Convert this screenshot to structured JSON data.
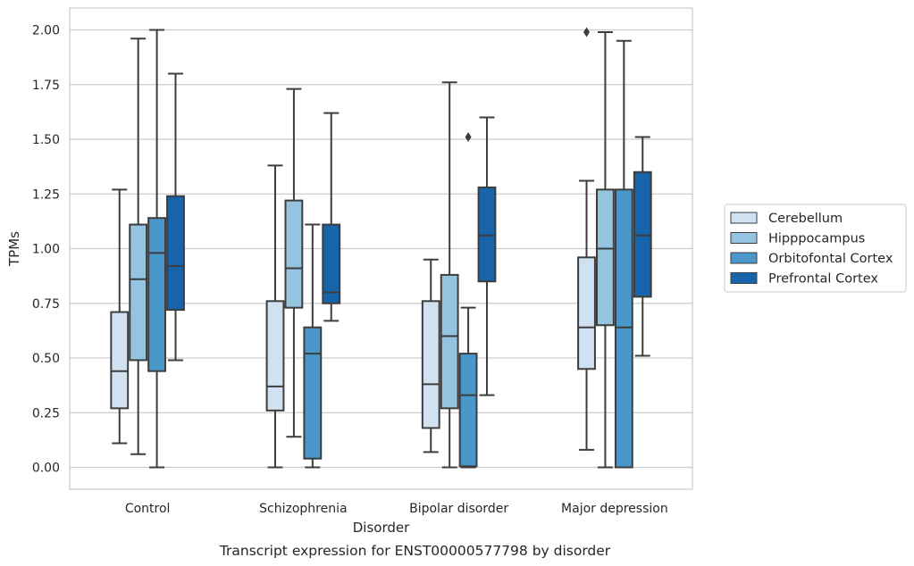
{
  "chart_data": {
    "type": "boxplot",
    "caption": "Transcript expression for ENST00000577798 by disorder",
    "xlabel": "Disorder",
    "ylabel": "TPMs",
    "ylim": [
      -0.1,
      2.1
    ],
    "yticks": [
      "0.00",
      "0.25",
      "0.50",
      "0.75",
      "1.00",
      "1.25",
      "1.50",
      "1.75",
      "2.00"
    ],
    "grid": "horizontal",
    "legend_position": "right",
    "categories": [
      "Control",
      "Schizophrenia",
      "Bipolar disorder",
      "Major depression"
    ],
    "series": [
      {
        "name": "Cerebellum",
        "color": "#d0e1f2",
        "boxes": [
          {
            "whislo": 0.11,
            "q1": 0.27,
            "med": 0.44,
            "q3": 0.71,
            "whishi": 1.27,
            "fliers": []
          },
          {
            "whislo": 0.0,
            "q1": 0.26,
            "med": 0.37,
            "q3": 0.76,
            "whishi": 1.38,
            "fliers": []
          },
          {
            "whislo": 0.07,
            "q1": 0.18,
            "med": 0.38,
            "q3": 0.76,
            "whishi": 0.95,
            "fliers": []
          },
          {
            "whislo": 0.08,
            "q1": 0.45,
            "med": 0.64,
            "q3": 0.96,
            "whishi": 1.31,
            "fliers": [
              1.99
            ]
          }
        ]
      },
      {
        "name": "Hipppocampus",
        "color": "#94c4df",
        "boxes": [
          {
            "whislo": 0.06,
            "q1": 0.49,
            "med": 0.86,
            "q3": 1.11,
            "whishi": 1.96,
            "fliers": []
          },
          {
            "whislo": 0.14,
            "q1": 0.73,
            "med": 0.91,
            "q3": 1.22,
            "whishi": 1.73,
            "fliers": []
          },
          {
            "whislo": 0.0,
            "q1": 0.27,
            "med": 0.6,
            "q3": 0.88,
            "whishi": 1.76,
            "fliers": []
          },
          {
            "whislo": 0.0,
            "q1": 0.65,
            "med": 1.0,
            "q3": 1.27,
            "whishi": 1.99,
            "fliers": []
          }
        ]
      },
      {
        "name": "Orbitofontal Cortex",
        "color": "#4a98c9",
        "boxes": [
          {
            "whislo": 0.0,
            "q1": 0.44,
            "med": 0.98,
            "q3": 1.14,
            "whishi": 2.0,
            "fliers": []
          },
          {
            "whislo": 0.0,
            "q1": 0.04,
            "med": 0.52,
            "q3": 0.64,
            "whishi": 1.11,
            "fliers": []
          },
          {
            "whislo": 0.0,
            "q1": 0.005,
            "med": 0.33,
            "q3": 0.52,
            "whishi": 0.73,
            "fliers": [
              1.51
            ]
          },
          {
            "whislo": 0.0,
            "q1": 0.0,
            "med": 0.64,
            "q3": 1.27,
            "whishi": 1.95,
            "fliers": []
          }
        ]
      },
      {
        "name": "Prefrontal Cortex",
        "color": "#1764ab",
        "boxes": [
          {
            "whislo": 0.49,
            "q1": 0.72,
            "med": 0.92,
            "q3": 1.24,
            "whishi": 1.8,
            "fliers": []
          },
          {
            "whislo": 0.67,
            "q1": 0.75,
            "med": 0.8,
            "q3": 1.11,
            "whishi": 1.62,
            "fliers": []
          },
          {
            "whislo": 0.33,
            "q1": 0.85,
            "med": 1.06,
            "q3": 1.28,
            "whishi": 1.6,
            "fliers": []
          },
          {
            "whislo": 0.51,
            "q1": 0.78,
            "med": 1.06,
            "q3": 1.35,
            "whishi": 1.51,
            "fliers": []
          }
        ]
      }
    ]
  }
}
